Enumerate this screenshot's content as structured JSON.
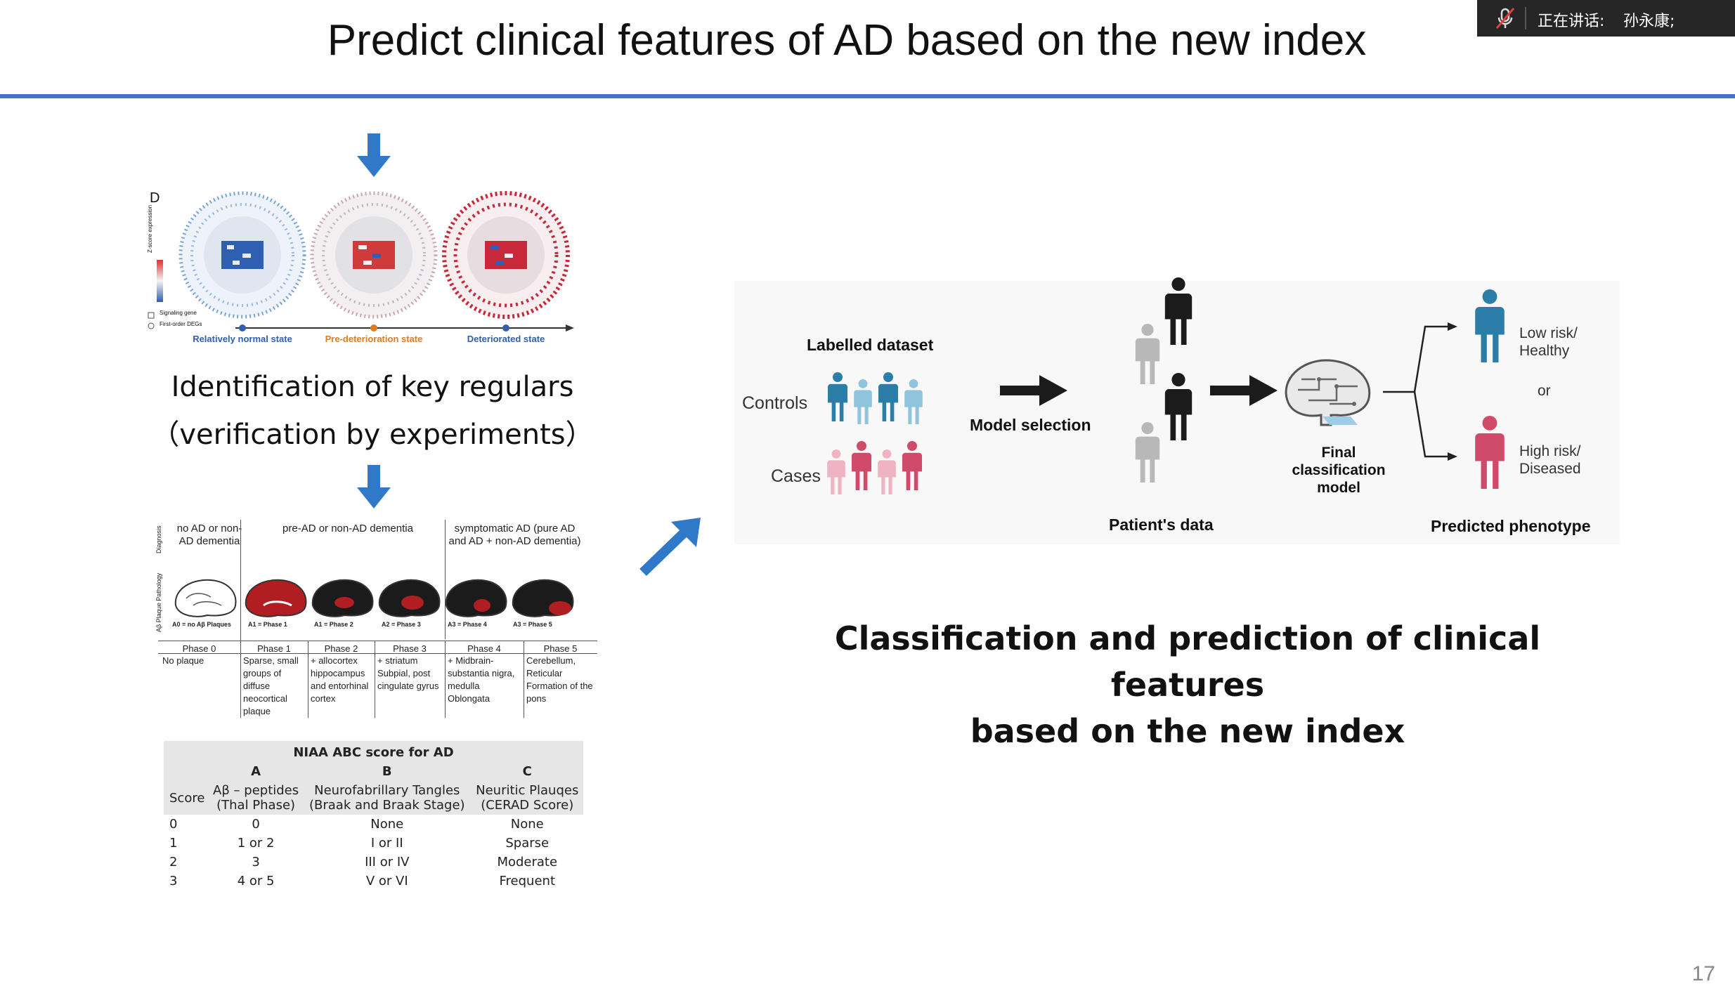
{
  "slide": {
    "title": "Predict clinical features of AD based on the new index",
    "page_number": "17",
    "accent_color": "#4472c4"
  },
  "speaker_bar": {
    "label": "正在讲话:",
    "name": "孙永康;",
    "icon": "muted-mic-icon"
  },
  "network_panel": {
    "panel_letter": "D",
    "colorbar_label": "Z-score expression",
    "legend": [
      "Signaling gene",
      "First-order DEGs"
    ],
    "states": [
      "Relatively normal state",
      "Pre-deterioration state",
      "Deteriorated state"
    ],
    "state_colors": [
      "#2e5fb0",
      "#e07b20",
      "#2e5fb0"
    ]
  },
  "key_regulars": {
    "line1": "Identification of key regulars",
    "line2": "（verification by experiments）"
  },
  "braak_figure": {
    "row_labels": [
      "Diagnosis",
      "Aβ Plaque Pathology"
    ],
    "diagnosis_groups": [
      "no AD or non-AD dementia",
      "pre-AD or non-AD dementia",
      "symptomatic AD (pure AD and AD + non-AD dementia)"
    ],
    "brain_labels": [
      "A0 = no Aβ Plaques",
      "A1 = Phase 1",
      "A1 = Phase 2",
      "A2 = Phase 3",
      "A3 = Phase 4",
      "A3 = Phase 5"
    ],
    "phases": [
      "Phase 0",
      "Phase 1",
      "Phase 2",
      "Phase 3",
      "Phase 4",
      "Phase 5"
    ],
    "phase_descriptions": [
      "No plaque",
      "Sparse, small groups of diffuse neocortical plaque",
      "+ allocortex hippocampus and entorhinal cortex",
      "+ striatum Subpial, post cingulate gyrus",
      "+ Midbrain- substantia nigra, medulla Oblongata",
      "Cerebellum, Reticular Formation of the pons"
    ]
  },
  "niaa_table": {
    "caption": "NIAA ABC score for AD",
    "letters": [
      "A",
      "B",
      "C"
    ],
    "score_header": "Score",
    "column_headers": [
      [
        "Aβ – peptides",
        "(Thal Phase)"
      ],
      [
        "Neurofabrillary Tangles",
        "(Braak and Braak Stage)"
      ],
      [
        "Neuritic Plauqes",
        "(CERAD Score)"
      ]
    ],
    "rows": [
      [
        "0",
        "0",
        "None",
        "None"
      ],
      [
        "1",
        "1 or 2",
        "I or II",
        "Sparse"
      ],
      [
        "2",
        "3",
        "III or IV",
        "Moderate"
      ],
      [
        "3",
        "4 or 5",
        "V or VI",
        "Frequent"
      ]
    ]
  },
  "ml_diagram": {
    "labelled_dataset": "Labelled dataset",
    "controls": "Controls",
    "cases": "Cases",
    "model_selection": "Model selection",
    "patients_data": "Patient's data",
    "final_model": [
      "Final",
      "classification",
      "model"
    ],
    "low_risk": [
      "Low risk/",
      "Healthy"
    ],
    "or": "or",
    "high_risk": [
      "High risk/",
      "Diseased"
    ],
    "predicted_phenotype": "Predicted phenotype",
    "control_color": "#2a7ea8",
    "case_color": "#d04a6a"
  },
  "conclusion": {
    "line1": "Classification and prediction of clinical features",
    "line2": "based on the new index"
  }
}
